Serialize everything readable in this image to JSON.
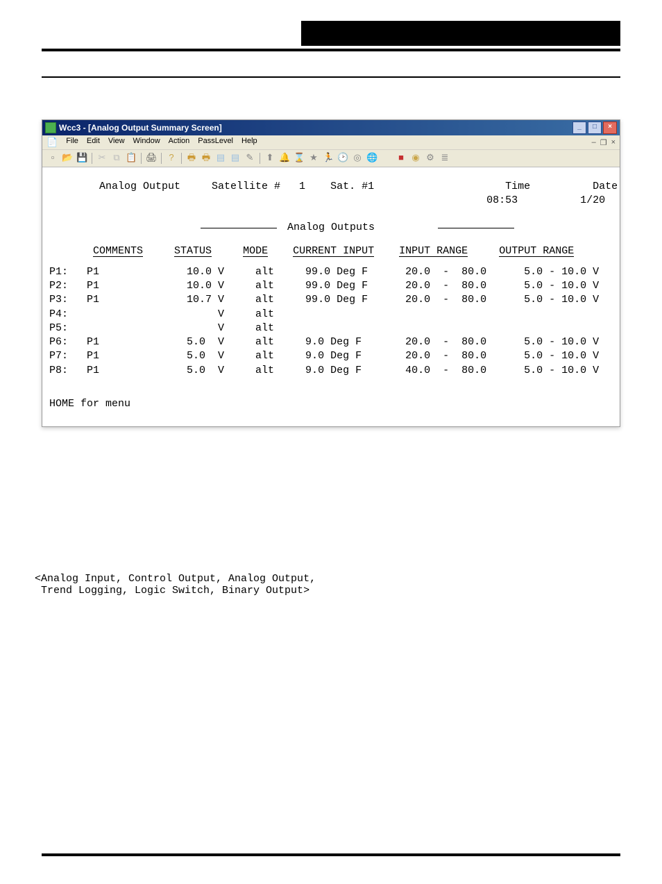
{
  "page_header_right_block_color": "#000000",
  "window": {
    "title": "Wcc3 - [Analog Output Summary Screen]",
    "menus": [
      "File",
      "Edit",
      "View",
      "Window",
      "Action",
      "PassLevel",
      "Help"
    ],
    "toolbar_icons": [
      {
        "name": "new-icon",
        "glyph": "▫",
        "color": "#777"
      },
      {
        "name": "open-icon",
        "glyph": "📂",
        "color": "#caa64a"
      },
      {
        "name": "save-icon",
        "glyph": "💾",
        "color": "#666"
      },
      {
        "name": "cut-icon",
        "glyph": "✂",
        "color": "#bbb"
      },
      {
        "name": "copy-icon",
        "glyph": "⧉",
        "color": "#bbb"
      },
      {
        "name": "paste-icon",
        "glyph": "📋",
        "color": "#bbb"
      },
      {
        "name": "print-icon",
        "glyph": "🖨",
        "color": "#555"
      },
      {
        "name": "help-icon",
        "glyph": "?",
        "color": "#caa64a"
      },
      {
        "name": "printer2-icon",
        "glyph": "🖶",
        "color": "#cc9933"
      },
      {
        "name": "printer3-icon",
        "glyph": "🖶",
        "color": "#cc9933"
      },
      {
        "name": "doc1-icon",
        "glyph": "▤",
        "color": "#9bbfe0"
      },
      {
        "name": "doc2-icon",
        "glyph": "▤",
        "color": "#9bbfe0"
      },
      {
        "name": "draw-icon",
        "glyph": "✎",
        "color": "#888"
      },
      {
        "name": "arrowup-icon",
        "glyph": "⬆",
        "color": "#888"
      },
      {
        "name": "bell-icon",
        "glyph": "🔔",
        "color": "#888"
      },
      {
        "name": "hourglass-icon",
        "glyph": "⌛",
        "color": "#888"
      },
      {
        "name": "star-icon",
        "glyph": "★",
        "color": "#888"
      },
      {
        "name": "running-icon",
        "glyph": "🏃",
        "color": "#888"
      },
      {
        "name": "dial-icon",
        "glyph": "🕑",
        "color": "#d9534f"
      },
      {
        "name": "ring-icon",
        "glyph": "◎",
        "color": "#888"
      },
      {
        "name": "globe-icon",
        "glyph": "🌐",
        "color": "#c0a050"
      },
      {
        "name": "blank-icon",
        "glyph": " ",
        "color": "#888"
      },
      {
        "name": "red-square-icon",
        "glyph": "■",
        "color": "#c53030"
      },
      {
        "name": "eye-icon",
        "glyph": "◉",
        "color": "#caa64a"
      },
      {
        "name": "tools-icon",
        "glyph": "⚙",
        "color": "#888"
      },
      {
        "name": "list-icon",
        "glyph": "≣",
        "color": "#888"
      }
    ]
  },
  "screen": {
    "screen_label": "Analog Output",
    "satellite_label": "Satellite #",
    "satellite_num": "1",
    "sat_short": "Sat. #1",
    "time_label": "Time",
    "time_value": "08:53",
    "date_label": "Date",
    "date_value": "1/20",
    "section_title": "Analog Outputs",
    "columns": {
      "comments": "COMMENTS",
      "status": "STATUS",
      "mode": "MODE",
      "current_input": "CURRENT INPUT",
      "input_range": "INPUT RANGE",
      "output_range": "OUTPUT RANGE"
    },
    "rows": [
      {
        "p": "P1:",
        "comment": "P1",
        "status": "10.0 V",
        "mode": "alt",
        "current": "99.0 Deg F",
        "input_range": "20.0  -  80.0",
        "output_range": "5.0 - 10.0 V"
      },
      {
        "p": "P2:",
        "comment": "P1",
        "status": "10.0 V",
        "mode": "alt",
        "current": "99.0 Deg F",
        "input_range": "20.0  -  80.0",
        "output_range": "5.0 - 10.0 V"
      },
      {
        "p": "P3:",
        "comment": "P1",
        "status": "10.7 V",
        "mode": "alt",
        "current": "99.0 Deg F",
        "input_range": "20.0  -  80.0",
        "output_range": "5.0 - 10.0 V"
      },
      {
        "p": "P4:",
        "comment": "",
        "status": "     V",
        "mode": "alt",
        "current": "",
        "input_range": "",
        "output_range": ""
      },
      {
        "p": "P5:",
        "comment": "",
        "status": "     V",
        "mode": "alt",
        "current": "",
        "input_range": "",
        "output_range": ""
      },
      {
        "p": "P6:",
        "comment": "P1",
        "status": "5.0  V",
        "mode": "alt",
        "current": "9.0 Deg F",
        "input_range": "20.0  -  80.0",
        "output_range": "5.0 - 10.0 V"
      },
      {
        "p": "P7:",
        "comment": "P1",
        "status": "5.0  V",
        "mode": "alt",
        "current": "9.0 Deg F",
        "input_range": "20.0  -  80.0",
        "output_range": "5.0 - 10.0 V"
      },
      {
        "p": "P8:",
        "comment": "P1",
        "status": "5.0  V",
        "mode": "alt",
        "current": "9.0 Deg F",
        "input_range": "40.0  -  80.0",
        "output_range": "5.0 - 10.0 V"
      }
    ],
    "footer": "HOME for menu"
  },
  "below_screenshot": "<Analog Input, Control Output, Analog Output,\n Trend Logging, Logic Switch, Binary Output>"
}
